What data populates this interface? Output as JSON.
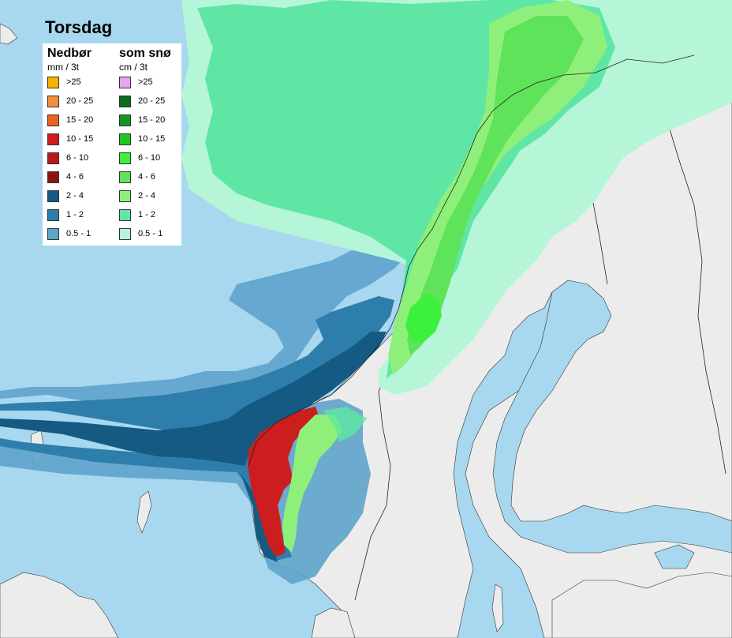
{
  "title": "Torsdag",
  "legend": {
    "rain": {
      "header": "Nedbør",
      "unit": "mm / 3t",
      "items": [
        {
          "label": ">25",
          "color": "#f4b400"
        },
        {
          "label": "20 - 25",
          "color": "#f0903c"
        },
        {
          "label": "15 - 20",
          "color": "#ea6422"
        },
        {
          "label": "10 - 15",
          "color": "#cc1e1e"
        },
        {
          "label": "6 - 10",
          "color": "#b81a1a"
        },
        {
          "label": "4 - 6",
          "color": "#8c1414"
        },
        {
          "label": "2 - 4",
          "color": "#145a82"
        },
        {
          "label": "1 - 2",
          "color": "#2e7eab"
        },
        {
          "label": "0.5 - 1",
          "color": "#5ea3cb"
        }
      ]
    },
    "snow": {
      "header": "som snø",
      "unit": "cm / 3t",
      "items": [
        {
          "label": ">25",
          "color": "#e8a6f0"
        },
        {
          "label": "20 - 25",
          "color": "#0a6e1e"
        },
        {
          "label": "15 - 20",
          "color": "#14961e"
        },
        {
          "label": "10 - 15",
          "color": "#1ec81e"
        },
        {
          "label": "6 - 10",
          "color": "#3cf03c"
        },
        {
          "label": "4 - 6",
          "color": "#5ee35a"
        },
        {
          "label": "2 - 4",
          "color": "#8ef07a"
        },
        {
          "label": "1 - 2",
          "color": "#5fe6a4"
        },
        {
          "label": "0.5 - 1",
          "color": "#b5f5d8"
        }
      ]
    }
  },
  "colors": {
    "sea": "#a8d8ef",
    "land": "#ececec",
    "border": "#222222"
  }
}
